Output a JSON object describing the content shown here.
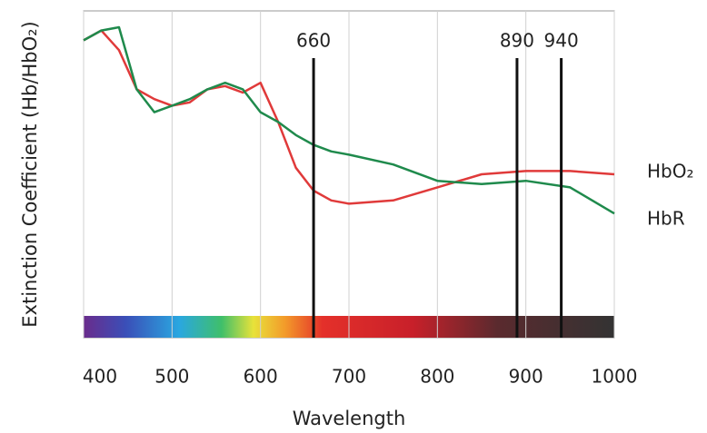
{
  "chart_data": {
    "type": "line",
    "x_label": "Wavelength",
    "y_label": "Extinction Coefficient (Hb/HbO₂)",
    "x": [
      400,
      420,
      440,
      460,
      480,
      500,
      520,
      540,
      560,
      580,
      600,
      620,
      640,
      660,
      680,
      700,
      750,
      800,
      850,
      900,
      950,
      1000
    ],
    "series": [
      {
        "name": "HbO₂",
        "color": "#e03a3a",
        "values": [
          91,
          94,
          88,
          76,
          73,
          71,
          72,
          76,
          77,
          75,
          78,
          66,
          52,
          45,
          42,
          41,
          42,
          46,
          50,
          51,
          51,
          50
        ]
      },
      {
        "name": "HbR",
        "color": "#1f8a4c",
        "values": [
          91,
          94,
          95,
          76,
          69,
          71,
          73,
          76,
          78,
          76,
          69,
          66,
          62,
          59,
          57,
          56,
          53,
          48,
          47,
          48,
          46,
          38
        ]
      }
    ],
    "markers": [
      660,
      890,
      940
    ],
    "xlim": [
      400,
      1000
    ],
    "xticks": [
      400,
      500,
      600,
      700,
      800,
      900,
      1000
    ],
    "ylim": [
      0,
      100
    ],
    "grid": true
  }
}
